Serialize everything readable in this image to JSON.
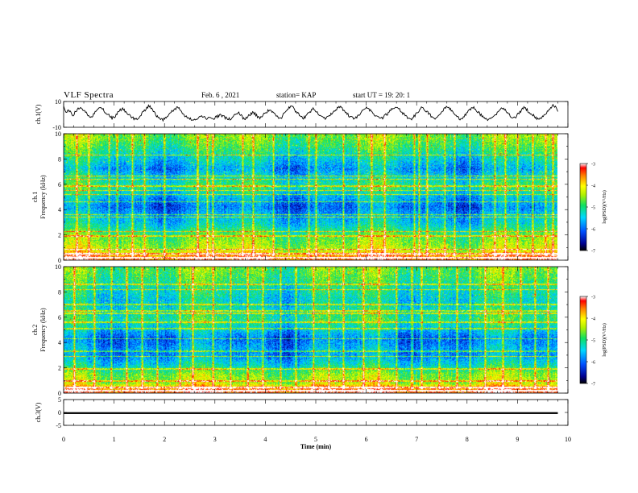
{
  "header": {
    "title": "VLF Spectra",
    "date": "Feb. 6 , 2021",
    "station": "station= KAP",
    "start_ut": "start  UT  =   19: 20: 1"
  },
  "chart_data": [
    {
      "type": "line",
      "panel": "ch1-waveform",
      "ylabel": "ch.1(V)",
      "ylim": [
        -10,
        10
      ],
      "yticks": [
        "10",
        "-10"
      ],
      "x_range_min": [
        0,
        9.8
      ],
      "values": [
        5.5,
        2.0,
        3.0,
        1.0,
        -0.5,
        2.5,
        4.0,
        5.5,
        3.0,
        1.5,
        -0.5,
        -2.0,
        -1.0,
        1.5,
        4.0,
        6.0,
        5.0,
        2.0,
        0.5,
        -1.5,
        -3.0,
        -2.0,
        0.5,
        2.5,
        4.5,
        3.0,
        1.0,
        -0.5,
        -2.0,
        -3.5,
        -4.0,
        -2.5,
        0.0,
        2.0,
        4.0,
        6.5,
        5.5,
        3.0,
        0.0,
        -2.5,
        -3.5,
        -4.5,
        -3.0,
        -1.0,
        1.5,
        3.0,
        4.0,
        5.5,
        3.5,
        1.0,
        -1.0,
        -2.5,
        -3.5,
        -4.0,
        -4.5,
        -3.5,
        -2.5,
        -1.5,
        -2.0,
        -3.0,
        -2.5,
        -3.0,
        -3.5,
        -2.0,
        -1.0,
        -0.5,
        -1.5,
        -3.0,
        -4.0,
        -3.0,
        -1.0,
        0.5,
        1.5,
        -0.5,
        -2.5,
        -3.5,
        -2.0,
        0.0,
        1.5,
        0.5,
        -1.5,
        -2.5,
        -1.0,
        0.5,
        2.0,
        3.5,
        2.5,
        0.5,
        -1.5,
        -3.0,
        -2.0,
        0.5,
        3.0,
        5.0,
        6.5,
        4.5,
        2.0,
        0.0,
        -1.5,
        -3.0,
        -1.5,
        0.5,
        2.5,
        4.5,
        2.5,
        0.5,
        -1.0,
        -2.5,
        -3.5,
        -2.5,
        -0.5,
        1.5,
        3.0,
        4.5,
        6.0,
        4.5,
        2.5,
        0.5,
        -1.5,
        -2.5,
        -3.5,
        -2.0,
        0.0,
        2.0,
        4.0,
        5.5,
        4.0,
        2.0,
        0.5,
        -1.0,
        -2.5,
        -3.5,
        -2.0,
        -0.5,
        1.0,
        3.0,
        5.0,
        6.5,
        5.0,
        3.0,
        1.0,
        -1.0,
        -2.5,
        -4.0,
        -3.0,
        -1.0,
        1.5,
        3.5,
        5.5,
        4.0,
        2.0,
        0.0,
        -2.0,
        -3.5,
        -2.5,
        0.0,
        2.0,
        4.0,
        6.0,
        5.0,
        3.0,
        1.0,
        -1.0,
        -3.0,
        -4.0,
        -2.5,
        0.0,
        2.0,
        4.0,
        5.5,
        4.5,
        2.0,
        0.0,
        -2.0,
        -3.5,
        -4.5,
        -3.5,
        -2.0,
        -0.5,
        1.5,
        3.5,
        5.0,
        3.5,
        1.5,
        -0.5,
        -2.0,
        -3.0,
        -1.0,
        1.0,
        3.0,
        5.5,
        4.0,
        2.0,
        0.5,
        -1.0,
        -2.5,
        -4.0,
        -3.0,
        -1.0,
        1.0,
        3.0,
        5.0,
        7.0,
        5.5,
        3.0
      ]
    },
    {
      "type": "heatmap",
      "panel": "ch1-spectrogram",
      "ylabel": "ch.1\nFrequency (kHz)",
      "ylim": [
        0,
        10
      ],
      "yticks": [
        "0",
        "2",
        "4",
        "6",
        "8",
        "10"
      ],
      "x_range_min": [
        0,
        9.8
      ],
      "z_label": "log(PSD)(V²/Hz)",
      "z_range": [
        -7,
        -3
      ],
      "z_ticks": [
        "-3",
        "-4",
        "-5",
        "-6",
        "-7"
      ],
      "band_levels_by_freq_kHz": [
        {
          "f": 0.25,
          "z": -3.4
        },
        {
          "f": 0.7,
          "z": -4.2
        },
        {
          "f": 1.2,
          "z": -4.5
        },
        {
          "f": 1.8,
          "z": -4.7
        },
        {
          "f": 2.3,
          "z": -5.0
        },
        {
          "f": 3.0,
          "z": -5.5
        },
        {
          "f": 3.5,
          "z": -5.6
        },
        {
          "f": 4.2,
          "z": -6.0
        },
        {
          "f": 5.0,
          "z": -5.6
        },
        {
          "f": 5.8,
          "z": -5.0
        },
        {
          "f": 6.5,
          "z": -5.3
        },
        {
          "f": 7.2,
          "z": -5.8
        },
        {
          "f": 8.0,
          "z": -5.4
        },
        {
          "f": 9.0,
          "z": -4.9
        },
        {
          "f": 9.8,
          "z": -4.6
        }
      ],
      "lines_kHz": [
        0.2,
        0.5,
        0.85,
        1.9,
        2.25,
        3.4,
        3.6,
        4.6,
        5.2,
        5.5,
        5.85,
        6.4,
        6.65,
        8.3
      ],
      "spikes_min": [
        0.25,
        0.5,
        0.9,
        1.05,
        1.35,
        1.6,
        2.0,
        2.65,
        2.85,
        2.95,
        3.55,
        3.75,
        4.15,
        4.45,
        4.85,
        5.0,
        5.55,
        5.85,
        6.1,
        6.35,
        6.95,
        7.05,
        7.2,
        7.55,
        7.75,
        8.05,
        8.3,
        8.55,
        8.75,
        9.0,
        9.3,
        9.55,
        9.7
      ]
    },
    {
      "type": "heatmap",
      "panel": "ch2-spectrogram",
      "ylabel": "ch.2\nFrequency (kHz)",
      "ylim": [
        0,
        10
      ],
      "yticks": [
        "0",
        "2",
        "4",
        "6",
        "8",
        "10"
      ],
      "x_range_min": [
        0,
        9.8
      ],
      "z_label": "log(PSD)(V²/Hz)",
      "z_range": [
        -7,
        -3
      ],
      "z_ticks": [
        "-3",
        "-4",
        "-5",
        "-6",
        "-7"
      ],
      "band_levels_by_freq_kHz": [
        {
          "f": 0.25,
          "z": -3.3
        },
        {
          "f": 0.8,
          "z": -4.4
        },
        {
          "f": 1.5,
          "z": -4.6
        },
        {
          "f": 2.2,
          "z": -5.3
        },
        {
          "f": 3.0,
          "z": -5.8
        },
        {
          "f": 3.5,
          "z": -5.7
        },
        {
          "f": 4.3,
          "z": -6.0
        },
        {
          "f": 5.0,
          "z": -5.5
        },
        {
          "f": 5.8,
          "z": -5.0
        },
        {
          "f": 6.5,
          "z": -5.2
        },
        {
          "f": 7.3,
          "z": -5.4
        },
        {
          "f": 8.2,
          "z": -5.2
        },
        {
          "f": 9.0,
          "z": -4.9
        },
        {
          "f": 9.8,
          "z": -4.7
        }
      ],
      "lines_kHz": [
        0.2,
        0.45,
        0.95,
        1.9,
        2.9,
        3.3,
        4.3,
        5.1,
        5.6,
        6.3,
        6.5,
        7.0,
        8.2,
        8.6
      ],
      "spikes_min": [
        0.2,
        0.6,
        0.95,
        1.25,
        1.55,
        1.85,
        2.3,
        2.55,
        2.95,
        3.3,
        3.65,
        3.95,
        4.3,
        4.6,
        4.95,
        5.25,
        5.55,
        5.95,
        6.25,
        6.6,
        6.9,
        7.1,
        7.45,
        7.8,
        8.05,
        8.35,
        8.7,
        9.05,
        9.35,
        9.6
      ]
    },
    {
      "type": "line",
      "panel": "ch3-waveform",
      "ylabel": "ch.3(V)",
      "ylim": [
        -5,
        5
      ],
      "yticks": [
        "5",
        "0",
        "-5"
      ],
      "x_range_min": [
        0,
        9.8
      ],
      "band": [
        -0.6,
        0.1
      ],
      "xlabel": "Time  (min)",
      "xticks": [
        "0",
        "1",
        "2",
        "3",
        "4",
        "5",
        "6",
        "7",
        "8",
        "9",
        "10"
      ],
      "xlim": [
        0,
        10
      ]
    }
  ]
}
